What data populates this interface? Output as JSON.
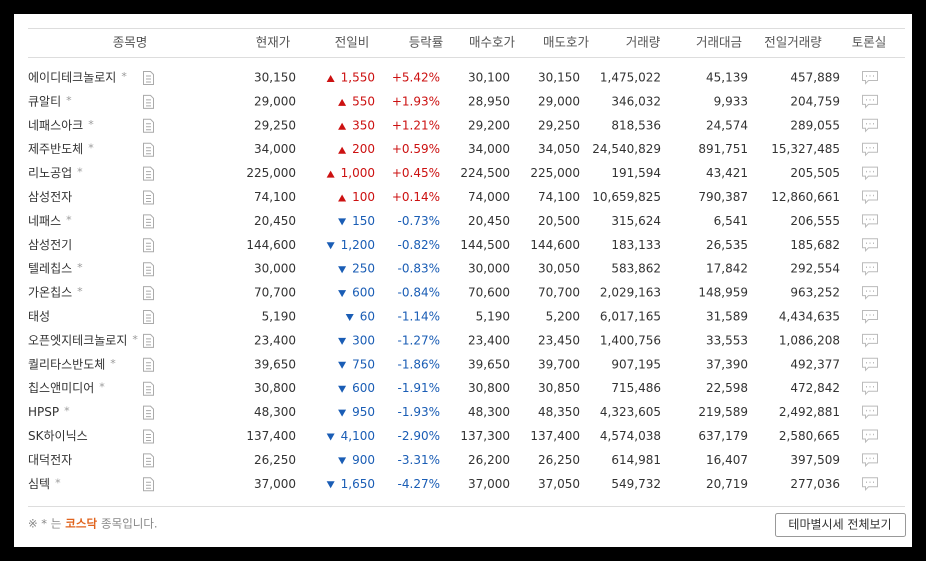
{
  "table": {
    "headers": [
      "종목명",
      "현재가",
      "전일비",
      "등락률",
      "매수호가",
      "매도호가",
      "거래량",
      "거래대금",
      "전일거래량",
      "토론실"
    ],
    "rows": [
      {
        "name": "에이디테크놀로지",
        "star": "*",
        "price": "30,150",
        "change": "1,550",
        "rate": "+5.42%",
        "bid": "30,100",
        "ask": "30,150",
        "volume": "1,475,022",
        "amount": "45,139",
        "prev_volume": "457,889"
      },
      {
        "name": "큐알티",
        "star": "*",
        "price": "29,000",
        "change": "550",
        "rate": "+1.93%",
        "bid": "28,950",
        "ask": "29,000",
        "volume": "346,032",
        "amount": "9,933",
        "prev_volume": "204,759"
      },
      {
        "name": "네패스아크",
        "star": "*",
        "price": "29,250",
        "change": "350",
        "rate": "+1.21%",
        "bid": "29,200",
        "ask": "29,250",
        "volume": "818,536",
        "amount": "24,574",
        "prev_volume": "289,055"
      },
      {
        "name": "제주반도체",
        "star": "*",
        "price": "34,000",
        "change": "200",
        "rate": "+0.59%",
        "bid": "34,000",
        "ask": "34,050",
        "volume": "24,540,829",
        "amount": "891,751",
        "prev_volume": "15,327,485"
      },
      {
        "name": "리노공업",
        "star": "*",
        "price": "225,000",
        "change": "1,000",
        "rate": "+0.45%",
        "bid": "224,500",
        "ask": "225,000",
        "volume": "191,594",
        "amount": "43,421",
        "prev_volume": "205,505"
      },
      {
        "name": "삼성전자",
        "price": "74,100",
        "change": "100",
        "rate": "+0.14%",
        "bid": "74,000",
        "ask": "74,100",
        "volume": "10,659,825",
        "amount": "790,387",
        "prev_volume": "12,860,661"
      },
      {
        "name": "네패스",
        "star": "*",
        "price": "20,450",
        "change": "150",
        "rate": "-0.73%",
        "bid": "20,450",
        "ask": "20,500",
        "volume": "315,624",
        "amount": "6,541",
        "prev_volume": "206,555"
      },
      {
        "name": "삼성전기",
        "price": "144,600",
        "change": "1,200",
        "rate": "-0.82%",
        "bid": "144,500",
        "ask": "144,600",
        "volume": "183,133",
        "amount": "26,535",
        "prev_volume": "185,682"
      },
      {
        "name": "텔레칩스",
        "star": "*",
        "price": "30,000",
        "change": "250",
        "rate": "-0.83%",
        "bid": "30,000",
        "ask": "30,050",
        "volume": "583,862",
        "amount": "17,842",
        "prev_volume": "292,554"
      },
      {
        "name": "가온칩스",
        "star": "*",
        "price": "70,700",
        "change": "600",
        "rate": "-0.84%",
        "bid": "70,600",
        "ask": "70,700",
        "volume": "2,029,163",
        "amount": "148,959",
        "prev_volume": "963,252"
      },
      {
        "name": "태성",
        "price": "5,190",
        "change": "60",
        "rate": "-1.14%",
        "bid": "5,190",
        "ask": "5,200",
        "volume": "6,017,165",
        "amount": "31,589",
        "prev_volume": "4,434,635"
      },
      {
        "name": "오픈엣지테크놀로지",
        "star": "*",
        "price": "23,400",
        "change": "300",
        "rate": "-1.27%",
        "bid": "23,400",
        "ask": "23,450",
        "volume": "1,400,756",
        "amount": "33,553",
        "prev_volume": "1,086,208"
      },
      {
        "name": "퀄리타스반도체",
        "star": "*",
        "price": "39,650",
        "change": "750",
        "rate": "-1.86%",
        "bid": "39,650",
        "ask": "39,700",
        "volume": "907,195",
        "amount": "37,390",
        "prev_volume": "492,377"
      },
      {
        "name": "칩스앤미디어",
        "star": "*",
        "price": "30,800",
        "change": "600",
        "rate": "-1.91%",
        "bid": "30,800",
        "ask": "30,850",
        "volume": "715,486",
        "amount": "22,598",
        "prev_volume": "472,842"
      },
      {
        "name": "HPSP",
        "star": "*",
        "price": "48,300",
        "change": "950",
        "rate": "-1.93%",
        "bid": "48,300",
        "ask": "48,350",
        "volume": "4,323,605",
        "amount": "219,589",
        "prev_volume": "2,492,881"
      },
      {
        "name": "SK하이닉스",
        "price": "137,400",
        "change": "4,100",
        "rate": "-2.90%",
        "bid": "137,300",
        "ask": "137,400",
        "volume": "4,574,038",
        "amount": "637,179",
        "prev_volume": "2,580,665"
      },
      {
        "name": "대덕전자",
        "price": "26,250",
        "change": "900",
        "rate": "-3.31%",
        "bid": "26,200",
        "ask": "26,250",
        "volume": "614,981",
        "amount": "16,407",
        "prev_volume": "397,509"
      },
      {
        "name": "심텍",
        "star": "*",
        "price": "37,000",
        "change": "1,650",
        "rate": "-4.27%",
        "bid": "37,000",
        "ask": "37,050",
        "volume": "549,732",
        "amount": "20,719",
        "prev_volume": "277,036"
      }
    ]
  },
  "footer": {
    "note_prefix": "※ * 는",
    "note_highlight": "코스닥",
    "note_suffix": "종목입니다.",
    "button": "테마별시세 전체보기"
  }
}
